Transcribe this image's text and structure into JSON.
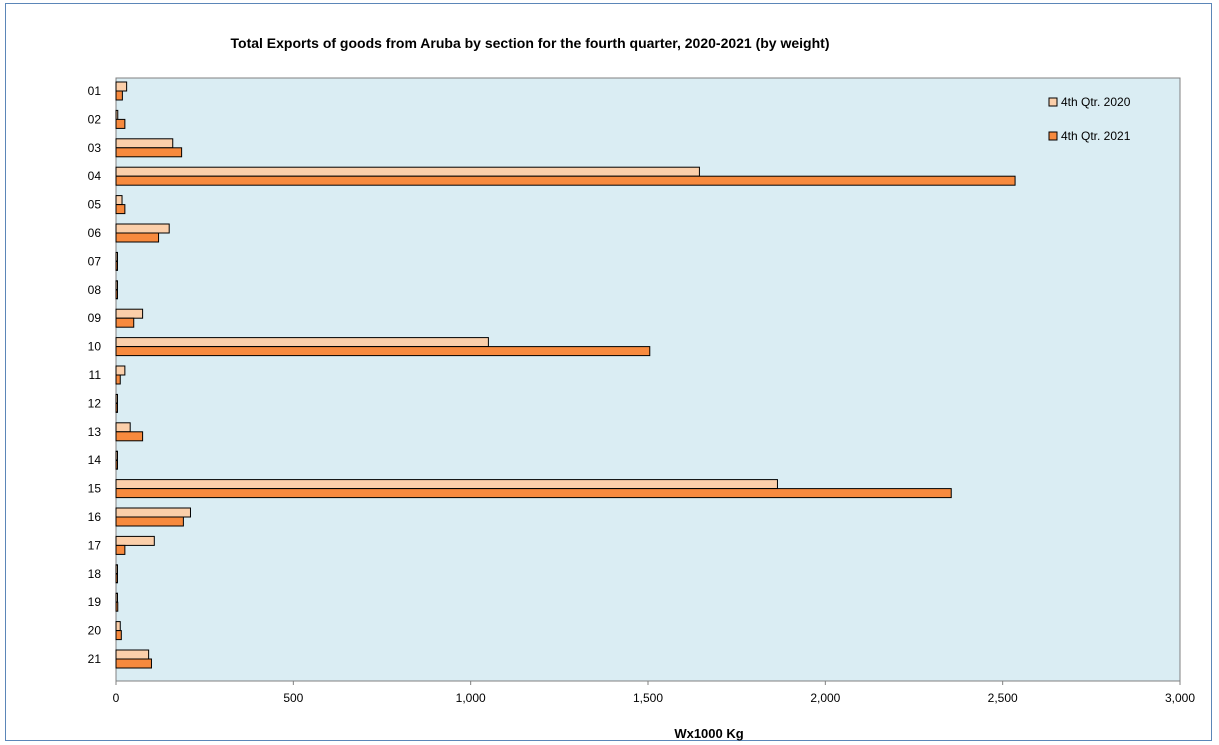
{
  "chart_data": {
    "type": "bar",
    "orientation": "horizontal",
    "title": "Total Exports of goods from Aruba by section for the fourth quarter, 2020-2021 (by weight)",
    "xlabel": "Wx1000 Kg",
    "ylabel": "",
    "xlim": [
      0,
      3000
    ],
    "x_ticks": [
      "0",
      "500",
      "1,000",
      "1,500",
      "2,000",
      "2,500",
      "3,000"
    ],
    "x_tick_values": [
      0,
      500,
      1000,
      1500,
      2000,
      2500,
      3000
    ],
    "categories": [
      "01",
      "02",
      "03",
      "04",
      "05",
      "06",
      "07",
      "08",
      "09",
      "10",
      "11",
      "12",
      "13",
      "14",
      "15",
      "16",
      "17",
      "18",
      "19",
      "20",
      "21"
    ],
    "series": [
      {
        "name": "4th Qtr. 2020",
        "color": "#fbcfaa",
        "values": [
          30,
          5,
          160,
          1645,
          17,
          150,
          3,
          3,
          75,
          1050,
          25,
          3,
          40,
          3,
          1865,
          210,
          108,
          3,
          2,
          12,
          92
        ]
      },
      {
        "name": "4th Qtr. 2021",
        "color": "#f78a3e",
        "values": [
          18,
          25,
          185,
          2535,
          25,
          120,
          3,
          3,
          50,
          1505,
          12,
          3,
          75,
          3,
          2355,
          190,
          25,
          3,
          5,
          15,
          100
        ]
      }
    ],
    "grid": false,
    "legend_position": "top-right",
    "plot_background": "#daedf3"
  }
}
